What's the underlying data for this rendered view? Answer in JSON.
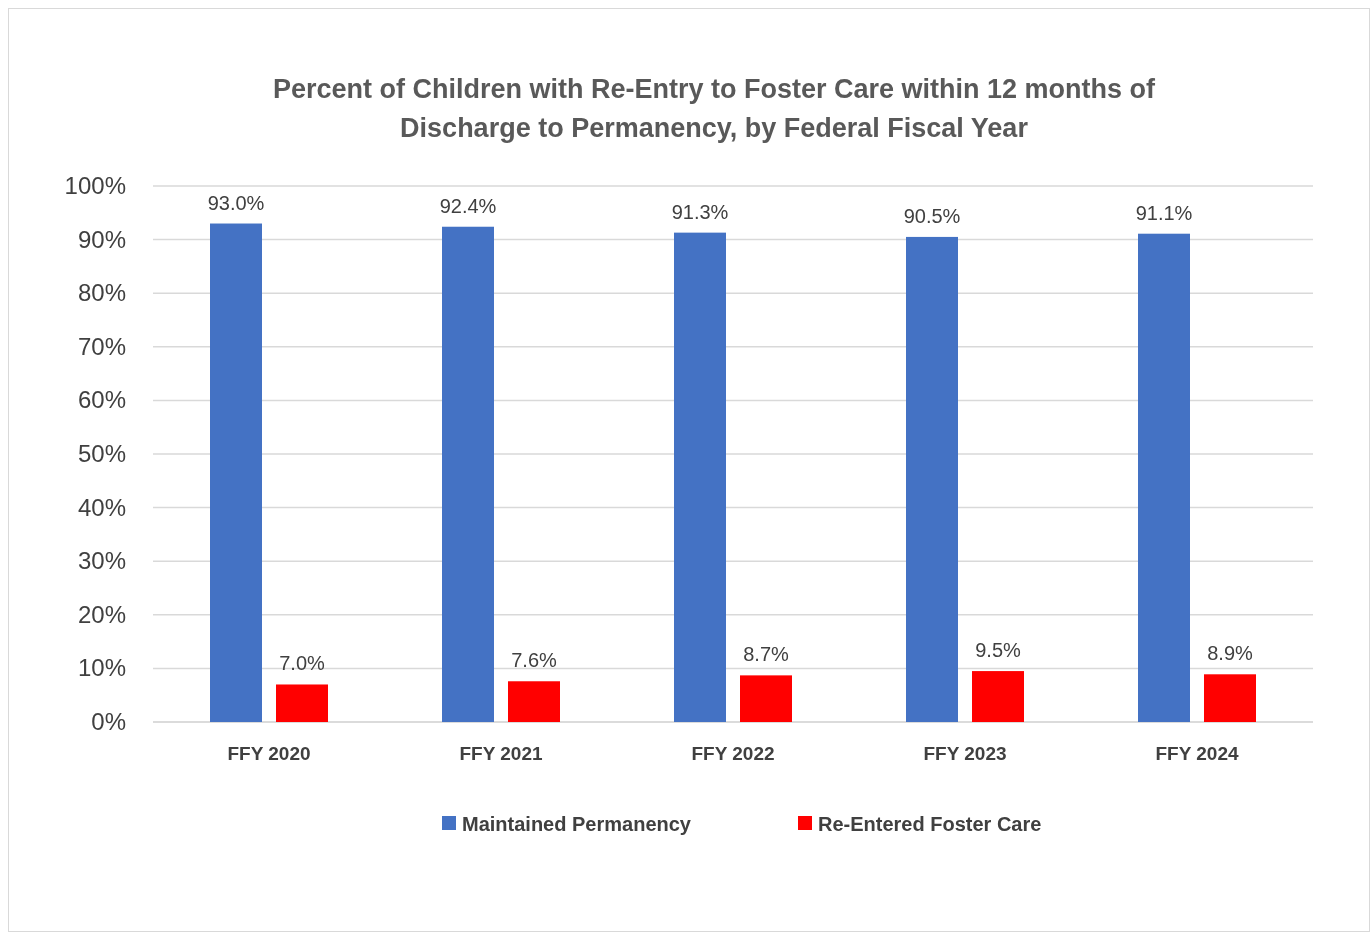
{
  "chart_data": {
    "type": "bar",
    "title": "Percent of Children with Re-Entry to Foster Care within 12 months of Discharge to Permanency, by Federal Fiscal Year",
    "categories": [
      "FFY 2020",
      "FFY 2021",
      "FFY 2022",
      "FFY 2023",
      "FFY 2024"
    ],
    "series": [
      {
        "name": "Maintained Permanency",
        "color": "#4472c4",
        "values": [
          93.0,
          92.4,
          91.3,
          90.5,
          91.1
        ],
        "value_labels": [
          "93.0%",
          "92.4%",
          "91.3%",
          "90.5%",
          "91.1%"
        ]
      },
      {
        "name": "Re-Entered Foster Care",
        "color": "#ff0000",
        "values": [
          7.0,
          7.6,
          8.7,
          9.5,
          8.9
        ],
        "value_labels": [
          "7.0%",
          "7.6%",
          "8.7%",
          "9.5%",
          "8.9%"
        ]
      }
    ],
    "ylim": [
      0,
      100
    ],
    "yticks": [
      {
        "value": 0,
        "label": "0%"
      },
      {
        "value": 10,
        "label": "10%"
      },
      {
        "value": 20,
        "label": "20%"
      },
      {
        "value": 30,
        "label": "30%"
      },
      {
        "value": 40,
        "label": "40%"
      },
      {
        "value": 50,
        "label": "50%"
      },
      {
        "value": 60,
        "label": "60%"
      },
      {
        "value": 70,
        "label": "70%"
      },
      {
        "value": 80,
        "label": "80%"
      },
      {
        "value": 90,
        "label": "90%"
      },
      {
        "value": 100,
        "label": "100%"
      }
    ],
    "grid": "y",
    "legend": "bottom"
  }
}
